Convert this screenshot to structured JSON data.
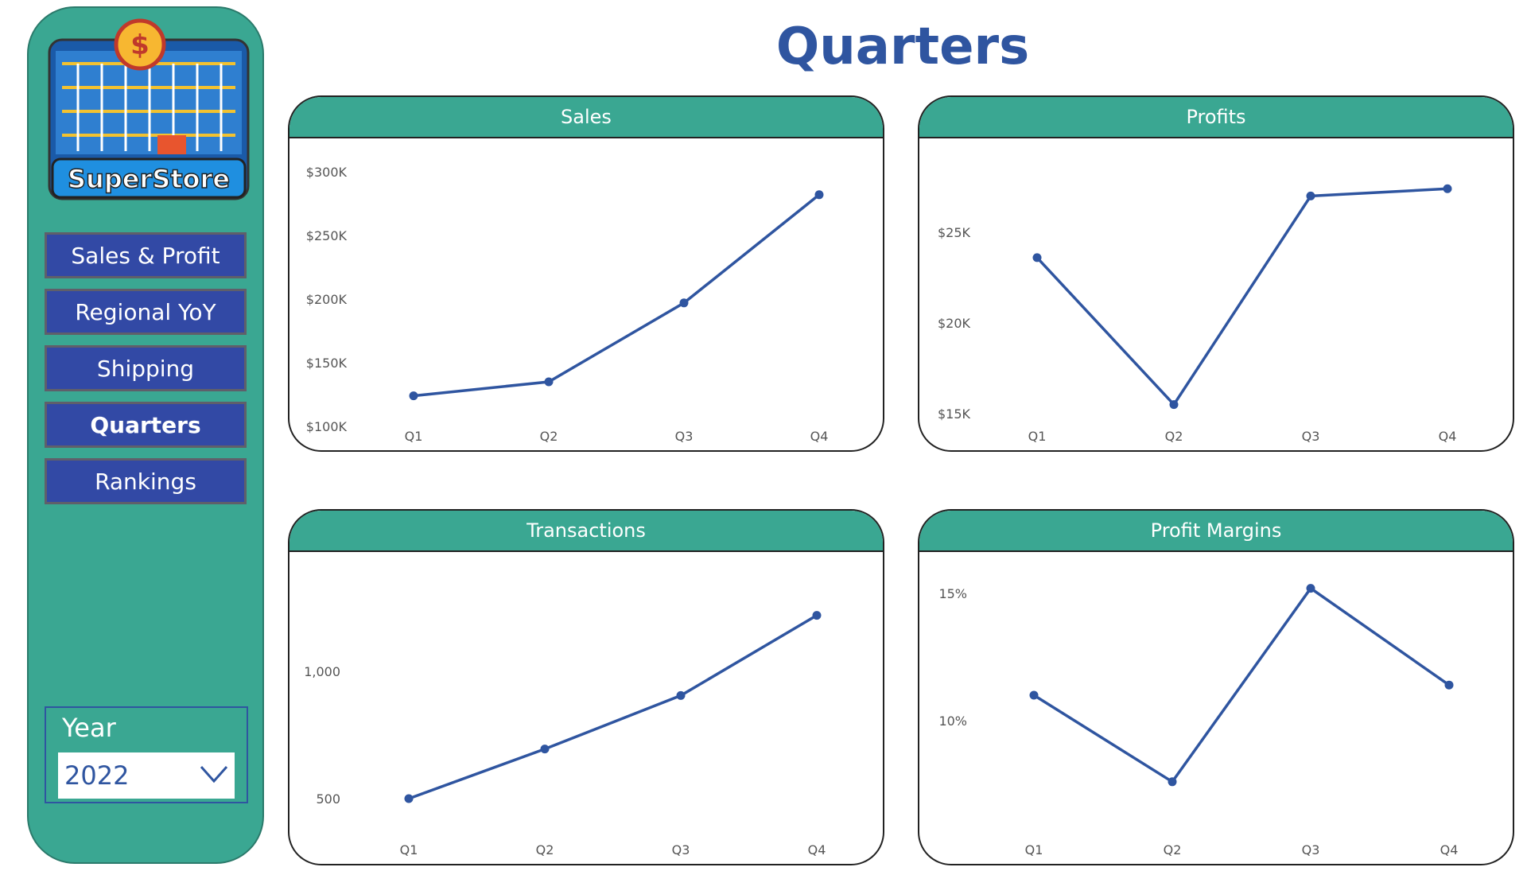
{
  "sidebar": {
    "logo_text": "SuperStore",
    "nav": [
      {
        "label": "Sales & Profit",
        "active": false
      },
      {
        "label": "Regional YoY",
        "active": false
      },
      {
        "label": "Shipping",
        "active": false
      },
      {
        "label": "Quarters",
        "active": true
      },
      {
        "label": "Rankings",
        "active": false
      }
    ],
    "year_label": "Year",
    "year_value": "2022"
  },
  "page_title": "Quarters",
  "colors": {
    "teal": "#3aa792",
    "blue": "#2f55a0",
    "nav_blue": "#3249a5"
  },
  "chart_data": [
    {
      "type": "line",
      "title": "Sales",
      "categories": [
        "Q1",
        "Q2",
        "Q3",
        "Q4"
      ],
      "series": [
        {
          "values": [
            124000,
            135000,
            197000,
            282000
          ]
        }
      ],
      "ylim": [
        100000,
        300000
      ],
      "yticks": [
        100000,
        150000,
        200000,
        250000,
        300000
      ],
      "ytick_labels": [
        "$100K",
        "$150K",
        "$200K",
        "$250K",
        "$300K"
      ]
    },
    {
      "type": "line",
      "title": "Profits",
      "categories": [
        "Q1",
        "Q2",
        "Q3",
        "Q4"
      ],
      "series": [
        {
          "values": [
            23600,
            15500,
            27000,
            27400
          ]
        }
      ],
      "ylim": [
        15000,
        25000
      ],
      "yticks": [
        15000,
        20000,
        25000
      ],
      "ytick_labels": [
        "$15K",
        "$20K",
        "$25K"
      ]
    },
    {
      "type": "line",
      "title": "Transactions",
      "categories": [
        "Q1",
        "Q2",
        "Q3",
        "Q4"
      ],
      "series": [
        {
          "values": [
            500,
            695,
            905,
            1220
          ]
        }
      ],
      "ylim": [
        500,
        1000
      ],
      "yticks": [
        500,
        1000
      ],
      "ytick_labels": [
        "500",
        "1,000"
      ]
    },
    {
      "type": "line",
      "title": "Profit Margins",
      "categories": [
        "Q1",
        "Q2",
        "Q3",
        "Q4"
      ],
      "series": [
        {
          "values": [
            11.0,
            7.6,
            15.2,
            11.4
          ]
        }
      ],
      "ylim": [
        10,
        15
      ],
      "yticks": [
        10,
        15
      ],
      "ytick_labels": [
        "10%",
        "15%"
      ]
    }
  ]
}
